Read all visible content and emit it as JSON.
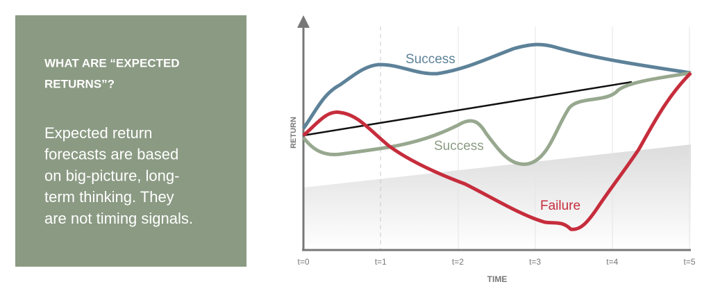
{
  "panel": {
    "heading_lines": [
      "WHAT ARE “EXPECTED",
      "RETURNS”?"
    ],
    "body_lines": [
      "Expected return",
      "forecasts are based",
      "on big-picture, long-",
      "term thinking. They",
      "are not timing signals."
    ]
  },
  "diagram": {
    "y_axis_label": "RETURN",
    "x_axis_label": "TIME",
    "x_labels": [
      "t=0",
      "t=1",
      "t=2",
      "t=3",
      "t=4",
      "t=5"
    ],
    "curve_labels": [
      "Success",
      "Success",
      "Failure"
    ]
  }
}
